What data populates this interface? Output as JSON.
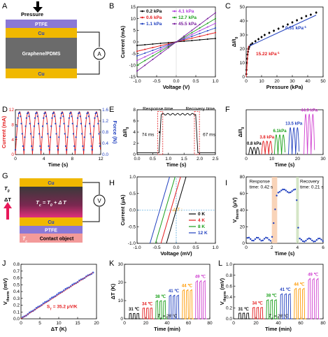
{
  "panels": {
    "A": {
      "label": "A",
      "pressure_label": "Pressure",
      "layers": [
        "PTFE",
        "Cu",
        "Graphene/PDMS",
        "Cu"
      ],
      "meter": "A",
      "colors": {
        "ptfe": "#8a78d6",
        "cu": "#f0b800",
        "core": "#6b6b6b"
      }
    },
    "G": {
      "label": "G",
      "t0": "T",
      "t0_sub": "0",
      "delta_t": "ΔT",
      "tc_eq": "T",
      "tc_sub": "c",
      "tc_rest": " = T",
      "tc_rest_sub": "0",
      "tc_tail": " + Δ T",
      "layers": [
        "Cu",
        "Cu",
        "PTFE",
        "Contact object"
      ],
      "tc_bottom": "T",
      "tc_bottom_sub": "c",
      "meter": "V"
    }
  },
  "chart_data": [
    {
      "id": "B",
      "type": "line",
      "xlabel": "Voltage (V)",
      "ylabel": "Current (mA)",
      "xlim": [
        -1.0,
        1.0
      ],
      "ylim": [
        -15,
        15
      ],
      "xticks": [
        "-1.0",
        "-0.5",
        "0.0",
        "0.5",
        "1.0"
      ],
      "yticks": [
        "-15",
        "-10",
        "-5",
        "0",
        "5",
        "10",
        "15"
      ],
      "series": [
        {
          "name": "0.2 kPa",
          "slope": 1.5,
          "color": "#000000"
        },
        {
          "name": "0.6 kPa",
          "slope": 4.0,
          "color": "#e41a1c"
        },
        {
          "name": "1.1 kPa",
          "slope": 6.0,
          "color": "#1f3fbf"
        },
        {
          "name": "4.1 kPa",
          "slope": 8.0,
          "color": "#b040e0"
        },
        {
          "name": "12.7 kPa",
          "slope": 10.0,
          "color": "#1aa01a"
        },
        {
          "name": "45.5 kPa",
          "slope": 12.5,
          "color": "#7a1f9e"
        }
      ]
    },
    {
      "id": "C",
      "type": "scatter",
      "xlabel": "Pressure (kPa)",
      "ylabel": "ΔI/I",
      "ylabel_sub": "0",
      "xlim": [
        0,
        50
      ],
      "ylim": [
        0,
        50
      ],
      "xticks": [
        "0",
        "10",
        "20",
        "30",
        "40",
        "50"
      ],
      "yticks": [
        "0",
        "10",
        "20",
        "30",
        "40",
        "50"
      ],
      "x": [
        0.1,
        0.2,
        0.4,
        0.6,
        0.9,
        1.2,
        1.6,
        2.0,
        3,
        4,
        6,
        8,
        10,
        12,
        15,
        18,
        21,
        24,
        27,
        30,
        33,
        36,
        39,
        42,
        45.5
      ],
      "y": [
        2,
        5,
        10,
        13,
        16,
        18,
        20,
        21.5,
        23,
        24,
        25.5,
        27,
        28.5,
        30,
        31.5,
        33,
        34.5,
        36,
        37.5,
        39,
        40.5,
        42,
        43.5,
        44.5,
        46
      ],
      "annotations": [
        {
          "text": "15.22 kPa",
          "sup": "-1",
          "color": "#e41a1c"
        },
        {
          "text": "0.51 kPa",
          "sup": "-1",
          "color": "#1f3fbf"
        }
      ]
    },
    {
      "id": "D",
      "type": "line",
      "xlabel": "Time (s)",
      "ylabel": "Current (mA)",
      "ylabel2": "Force (N)",
      "xlim": [
        0,
        14
      ],
      "ylim": [
        0,
        12
      ],
      "y2lim": [
        0,
        1.6
      ],
      "xticks": [
        "0",
        "4",
        "8",
        "12"
      ],
      "yticks": [
        "0",
        "4",
        "8",
        "12"
      ],
      "y2ticks": [
        "0.0",
        "0.4",
        "0.8",
        "1.2",
        "1.6"
      ],
      "period_s": 1.4,
      "peak_current": 11.5,
      "peak_force": 1.5
    },
    {
      "id": "E",
      "type": "line",
      "xlabel": "Time (s)",
      "ylabel": "ΔI/I",
      "ylabel_sub": "0",
      "xlim": [
        0,
        2.5
      ],
      "ylim": [
        0,
        8
      ],
      "xticks": [
        "0.0",
        "0.5",
        "1.0",
        "1.5",
        "2.0",
        "2.5"
      ],
      "yticks": [
        "0",
        "2",
        "4",
        "6",
        "8"
      ],
      "rise_start": 0.7,
      "rise_end": 0.77,
      "fall_start": 1.87,
      "fall_end": 1.94,
      "high": 7.2,
      "annotations": [
        "Response time",
        "Recovery  time",
        "74 ms",
        "67 ms"
      ]
    },
    {
      "id": "F",
      "type": "line",
      "xlabel": "Time (s)",
      "ylabel": "ΔI/I",
      "ylabel_sub": "0",
      "xlim": [
        0,
        30
      ],
      "xticks": [
        "0",
        "10",
        "20",
        "30"
      ],
      "groups": [
        {
          "label": "0.8 kPa",
          "start": 1,
          "amp": 0.8,
          "color": "#000000"
        },
        {
          "label": "3.8 kPa",
          "start": 6,
          "amp": 1.5,
          "color": "#e41a1c"
        },
        {
          "label": "6.1kPa",
          "start": 11,
          "amp": 2.2,
          "color": "#1aa01a"
        },
        {
          "label": "13.5 kPa",
          "start": 16.5,
          "amp": 3.0,
          "color": "#1f3fbf"
        },
        {
          "label": "44.9 kPa",
          "start": 22.5,
          "amp": 4.5,
          "color": "#d040d0"
        }
      ]
    },
    {
      "id": "H",
      "type": "line",
      "xlabel": "Voltage (mV)",
      "ylabel": "Current (μA)",
      "xlim": [
        -1.0,
        1.0
      ],
      "ylim": [
        -1.0,
        1.0
      ],
      "xticks": [
        "-1.0",
        "-0.5",
        "0.0",
        "0.5",
        "1.0"
      ],
      "yticks": [
        "-1.0",
        "-0.5",
        "0.0",
        "0.5",
        "1.0"
      ],
      "legend_title": "Δ T :",
      "series": [
        {
          "name": "0 K",
          "intercept": 0.0,
          "color": "#000000"
        },
        {
          "name": "4 K",
          "intercept": -0.14,
          "color": "#e41a1c"
        },
        {
          "name": "8 K",
          "intercept": -0.28,
          "color": "#1aa01a"
        },
        {
          "name": "12 K",
          "intercept": -0.42,
          "color": "#1f3fbf"
        }
      ]
    },
    {
      "id": "I",
      "type": "scatter",
      "xlabel": "Time (s)",
      "ylabel": "V",
      "ylabel_sub": "therm",
      "ylabel_unit": " (μV)",
      "xlim": [
        0,
        6
      ],
      "ylim": [
        0,
        80
      ],
      "xticks": [
        "0",
        "2",
        "4",
        "6"
      ],
      "yticks": [
        "0",
        "20",
        "40",
        "60",
        "80"
      ],
      "annotations": [
        "Response",
        "time: 0.42 s",
        "Recovery",
        "time: 0.21 s"
      ]
    },
    {
      "id": "J",
      "type": "scatter",
      "xlabel": "ΔT (K)",
      "ylabel": "V",
      "ylabel_sub": "therm",
      "ylabel_unit": " (mV)",
      "xlim": [
        0,
        22
      ],
      "ylim": [
        0,
        0.8
      ],
      "xticks": [
        "0",
        "5",
        "10",
        "15",
        "20"
      ],
      "yticks": [
        "0.0",
        "0.1",
        "0.2",
        "0.3",
        "0.4",
        "0.5",
        "0.6",
        "0.7"
      ],
      "slope_mv_per_k": 0.0352,
      "annotation": {
        "text": "S",
        "sub": "T",
        "rest": " = 35.2 μV/K"
      }
    },
    {
      "id": "K",
      "type": "line",
      "xlabel": "Time (min)",
      "ylabel": "ΔT (K)",
      "xlim": [
        0,
        90
      ],
      "ylim": [
        0,
        30
      ],
      "xticks": [
        "0",
        "20",
        "40",
        "60",
        "80"
      ],
      "yticks": [
        "0",
        "10",
        "20",
        "30"
      ],
      "note": "T",
      "note_sub": "0",
      "note_rest": " = 28 °C"
    },
    {
      "id": "L",
      "type": "line",
      "xlabel": "Time (min)",
      "ylabel": "V",
      "ylabel_sub": "therm",
      "ylabel_unit": " (mV)",
      "xlim": [
        0,
        90
      ],
      "ylim": [
        0,
        1.0
      ],
      "xticks": [
        "0",
        "20",
        "40",
        "60",
        "80"
      ],
      "yticks": [
        "0.0",
        "0.2",
        "0.4",
        "0.6",
        "0.8",
        "1.0"
      ],
      "note": "T",
      "note_sub": "0",
      "note_rest": " = 28 °C"
    }
  ],
  "temperature_groups": [
    {
      "label": "31 ℃",
      "dT": 3,
      "dV": 0.105,
      "color": "#000000"
    },
    {
      "label": "34 ℃",
      "dT": 6,
      "dV": 0.21,
      "color": "#e41a1c"
    },
    {
      "label": "38 ℃",
      "dT": 10,
      "dV": 0.35,
      "color": "#1aa01a"
    },
    {
      "label": "41 ℃",
      "dT": 13,
      "dV": 0.46,
      "color": "#1f3fbf"
    },
    {
      "label": "44 ℃",
      "dT": 16,
      "dV": 0.56,
      "color": "#ff9900"
    },
    {
      "label": "49 ℃",
      "dT": 21,
      "dV": 0.74,
      "color": "#d040d0"
    }
  ]
}
